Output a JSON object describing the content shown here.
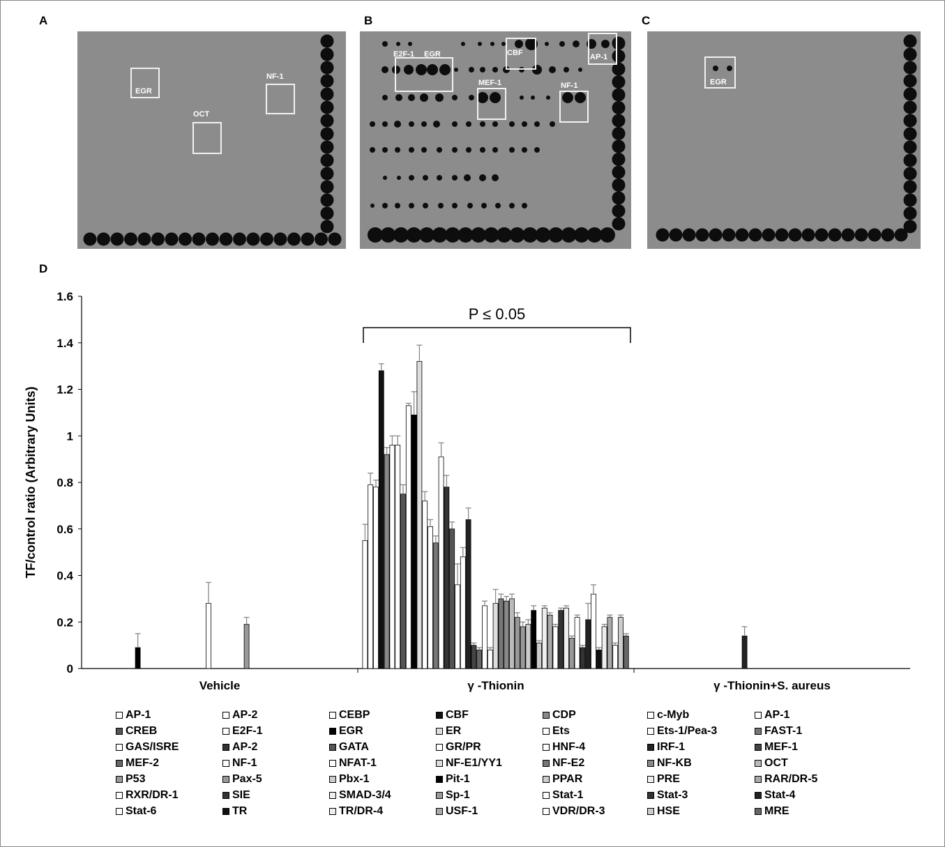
{
  "panels": {
    "A": {
      "letter": "A",
      "labels": [
        "EGR",
        "OCT",
        "NF-1"
      ]
    },
    "B": {
      "letter": "B",
      "labels": [
        "E2F-1",
        "EGR",
        "CBF",
        "AP-1",
        "MEF-1",
        "NF-1"
      ]
    },
    "C": {
      "letter": "C",
      "labels": [
        "EGR"
      ]
    },
    "D": {
      "letter": "D"
    }
  },
  "chart_data": {
    "type": "bar",
    "ylabel": "TF/control ratio (Arbitrary Units)",
    "ylim": [
      0,
      1.6
    ],
    "yticks": [
      "0",
      "0.2",
      "0.4",
      "0.6",
      "0.8",
      "1",
      "1.2",
      "1.4",
      "1.6"
    ],
    "annotation": "P ≤ 0.05",
    "groups": [
      "Vehicle",
      "γ -Thionin",
      "γ -Thionin+S. aureus"
    ],
    "factors": [
      "AP-1",
      "AP-2",
      "CEBP",
      "CBF",
      "CDP",
      "c-Myb",
      "AP-1",
      "CREB",
      "E2F-1",
      "EGR",
      "ER",
      "Ets",
      "Ets-1/Pea-3",
      "FAST-1",
      "GAS/ISRE",
      "AP-2",
      "GATA",
      "GR/PR",
      "HNF-4",
      "IRF-1",
      "MEF-1",
      "MEF-2",
      "NF-1",
      "NFAT-1",
      "NF-E1/YY1",
      "NF-E2",
      "NF-ΚB",
      "OCT",
      "P53",
      "Pax-5",
      "Pbx-1",
      "Pit-1",
      "PPAR",
      "PRE",
      "RAR/DR-5",
      "RXR/DR-1",
      "SIE",
      "SMAD-3/4",
      "Sp-1",
      "Stat-1",
      "Stat-3",
      "Stat-4",
      "Stat-6",
      "TR",
      "TR/DR-4",
      "USF-1",
      "VDR/DR-3",
      "HSE",
      "MRE"
    ],
    "series": [
      {
        "values": [
          0,
          0,
          0,
          0,
          0,
          0,
          0,
          0,
          0,
          0.09,
          0,
          0,
          0,
          0,
          0,
          0,
          0,
          0,
          0,
          0,
          0,
          0,
          0.28,
          0,
          0,
          0,
          0,
          0,
          0,
          0.19,
          0,
          0,
          0,
          0,
          0,
          0,
          0,
          0,
          0,
          0,
          0,
          0,
          0,
          0,
          0,
          0,
          0,
          0,
          0
        ]
      },
      {
        "values": [
          0.55,
          0.79,
          0.78,
          1.28,
          0.92,
          0.96,
          0.96,
          0.75,
          1.13,
          1.09,
          1.32,
          0.72,
          0.61,
          0.54,
          0.91,
          0.78,
          0.6,
          0.36,
          0.48,
          0.64,
          0.1,
          0.08,
          0.27,
          0.08,
          0.28,
          0.3,
          0.29,
          0.3,
          0.22,
          0.18,
          0.19,
          0.25,
          0.11,
          0.26,
          0.23,
          0.18,
          0.25,
          0.26,
          0.13,
          0.22,
          0.09,
          0.21,
          0.32,
          0.08,
          0.18,
          0.22,
          0.1,
          0.22,
          0.14
        ]
      },
      {
        "values": [
          0,
          0,
          0,
          0,
          0,
          0,
          0,
          0,
          0,
          0,
          0,
          0,
          0,
          0,
          0,
          0,
          0,
          0,
          0,
          0.14,
          0,
          0,
          0,
          0,
          0,
          0,
          0,
          0,
          0,
          0,
          0,
          0,
          0,
          0,
          0,
          0,
          0,
          0,
          0,
          0,
          0,
          0,
          0,
          0,
          0,
          0,
          0,
          0,
          0
        ]
      }
    ],
    "errors": [
      {
        "values": [
          0,
          0,
          0,
          0,
          0,
          0,
          0,
          0,
          0,
          0.06,
          0,
          0,
          0,
          0,
          0,
          0,
          0,
          0,
          0,
          0,
          0,
          0,
          0.09,
          0,
          0,
          0,
          0,
          0,
          0,
          0.03,
          0,
          0,
          0,
          0,
          0,
          0,
          0,
          0,
          0,
          0,
          0,
          0,
          0,
          0,
          0,
          0,
          0,
          0,
          0
        ]
      },
      {
        "values": [
          0.07,
          0.05,
          0.03,
          0.03,
          0.03,
          0.04,
          0.04,
          0.04,
          0.01,
          0.1,
          0.07,
          0.04,
          0.03,
          0.03,
          0.06,
          0.05,
          0.03,
          0.09,
          0.04,
          0.05,
          0.01,
          0.01,
          0.02,
          0.01,
          0.06,
          0.02,
          0.02,
          0.02,
          0.02,
          0.02,
          0.02,
          0.02,
          0.01,
          0.01,
          0.01,
          0.01,
          0.01,
          0.01,
          0.01,
          0.01,
          0.01,
          0.07,
          0.04,
          0.01,
          0.01,
          0.01,
          0.01,
          0.01,
          0.01
        ]
      },
      {
        "values": [
          0,
          0,
          0,
          0,
          0,
          0,
          0,
          0,
          0,
          0,
          0,
          0,
          0,
          0,
          0,
          0,
          0,
          0,
          0,
          0.04,
          0,
          0,
          0,
          0,
          0,
          0,
          0,
          0,
          0,
          0,
          0,
          0,
          0,
          0,
          0,
          0,
          0,
          0,
          0,
          0,
          0,
          0,
          0,
          0,
          0,
          0,
          0,
          0,
          0
        ]
      }
    ],
    "legend_placement": "bottom",
    "grid": false
  }
}
